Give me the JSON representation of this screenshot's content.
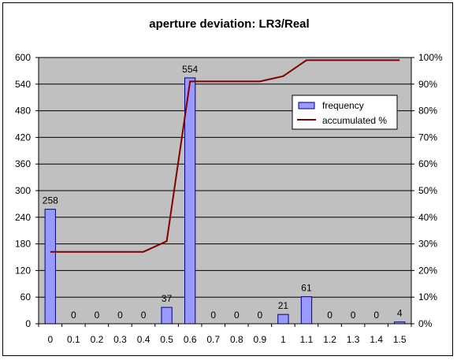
{
  "chart_data": {
    "type": "bar",
    "title": "aperture deviation: LR3/Real",
    "categories": [
      "0",
      "0.1",
      "0.2",
      "0.3",
      "0.4",
      "0.5",
      "0.6",
      "0.7",
      "0.8",
      "0.9",
      "1",
      "1.1",
      "1.2",
      "1.3",
      "1.4",
      "1.5"
    ],
    "series": [
      {
        "name": "frequency",
        "type": "bar",
        "axis": "left",
        "color": "#9999ff",
        "values": [
          258,
          0,
          0,
          0,
          0,
          37,
          554,
          0,
          0,
          0,
          21,
          61,
          0,
          0,
          0,
          4
        ],
        "data_labels": [
          "258",
          "0",
          "0",
          "0",
          "0",
          "37",
          "554",
          "0",
          "0",
          "0",
          "21",
          "61",
          "0",
          "0",
          "0",
          "4"
        ]
      },
      {
        "name": "accumulated %",
        "type": "line",
        "axis": "right",
        "color": "#800000",
        "values": [
          27,
          27,
          27,
          27,
          27,
          31,
          91,
          91,
          91,
          91,
          93,
          99,
          99,
          99,
          99,
          99
        ]
      }
    ],
    "y_left": {
      "min": 0,
      "max": 600,
      "ticks": [
        "0",
        "60",
        "120",
        "180",
        "240",
        "300",
        "360",
        "420",
        "480",
        "540",
        "600"
      ]
    },
    "y_right": {
      "min": 0,
      "max": 100,
      "ticks": [
        "0%",
        "10%",
        "20%",
        "30%",
        "40%",
        "50%",
        "60%",
        "70%",
        "80%",
        "90%",
        "100%"
      ]
    },
    "plot_background": "#c0c0c0",
    "grid": true,
    "legend": "right"
  }
}
